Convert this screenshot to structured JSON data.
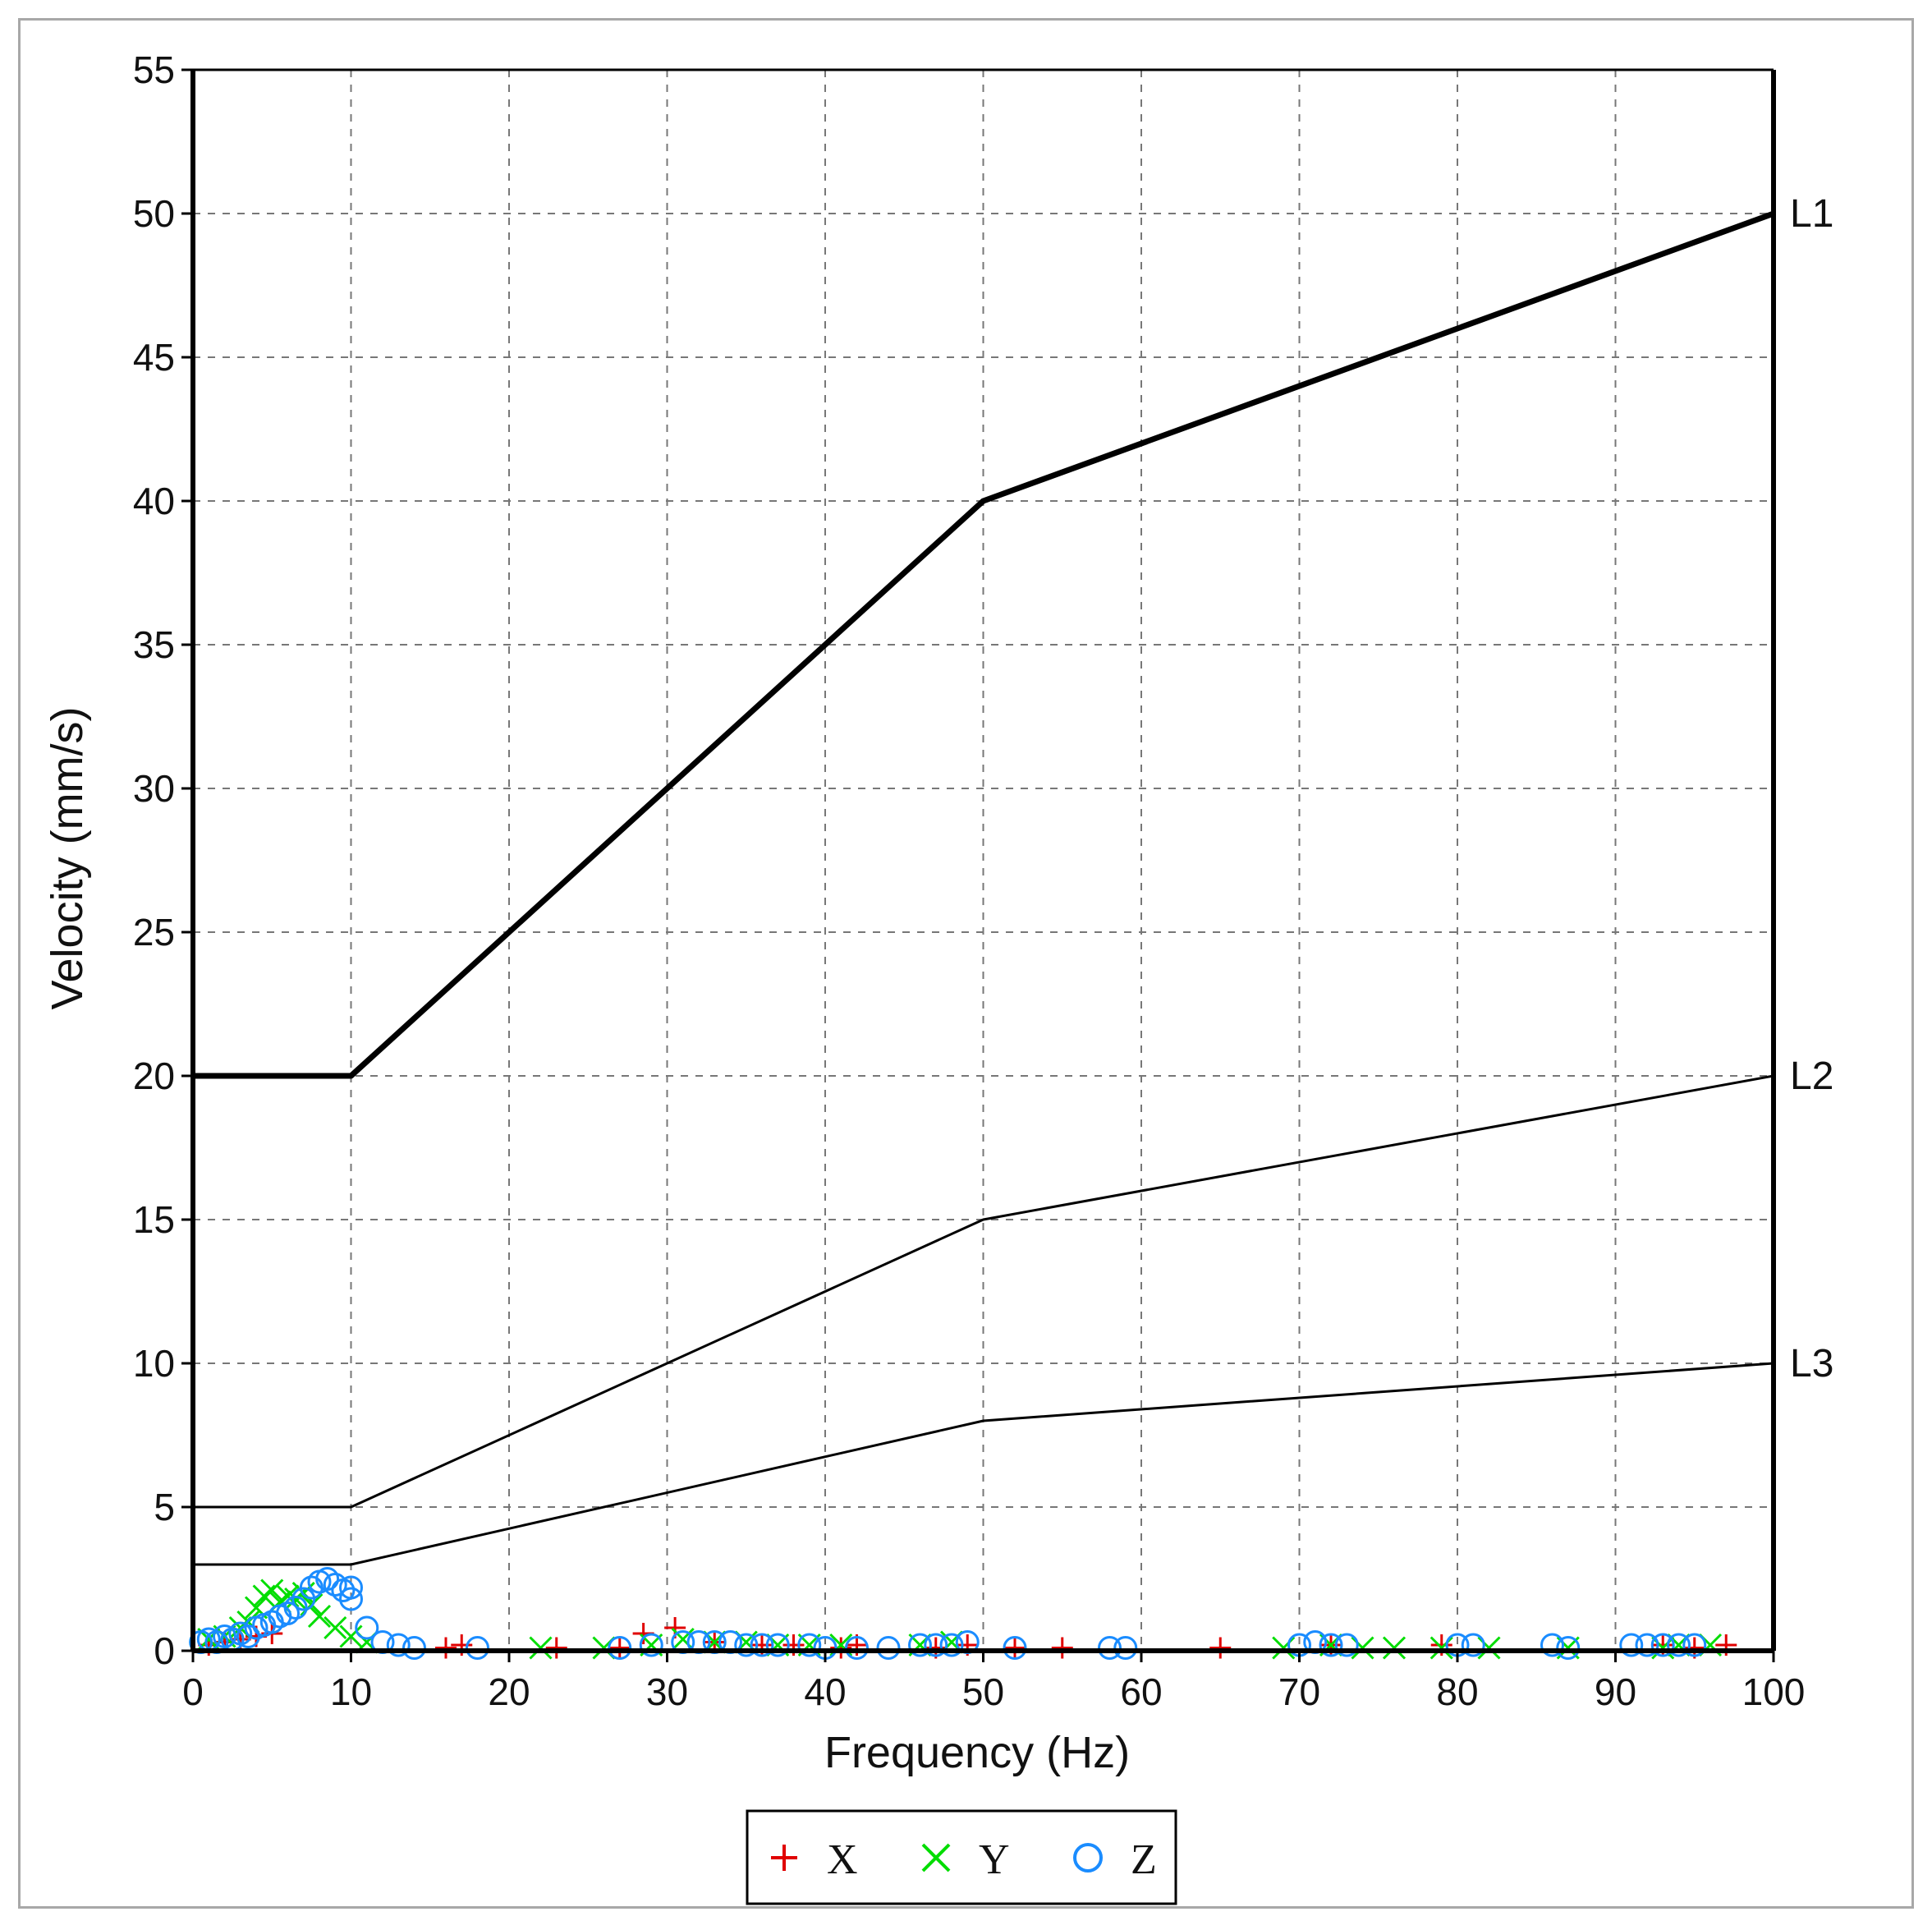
{
  "chart_data": {
    "type": "scatter",
    "xlabel": "Frequency (Hz)",
    "ylabel": "Velocity (mm/s)",
    "xlim": [
      0,
      100
    ],
    "ylim": [
      0,
      55
    ],
    "x_ticks": [
      0,
      10,
      20,
      30,
      40,
      50,
      60,
      70,
      80,
      90,
      100
    ],
    "y_ticks": [
      0,
      5,
      10,
      15,
      20,
      25,
      30,
      35,
      40,
      45,
      50,
      55
    ],
    "grid": true,
    "legend_position": "bottom-center",
    "limit_lines": [
      {
        "name": "L1",
        "points": [
          [
            0,
            20
          ],
          [
            10,
            20
          ],
          [
            50,
            40
          ],
          [
            100,
            50
          ]
        ],
        "style": "thick"
      },
      {
        "name": "L2",
        "points": [
          [
            0,
            5
          ],
          [
            10,
            5
          ],
          [
            50,
            15
          ],
          [
            100,
            20
          ]
        ],
        "style": "thin"
      },
      {
        "name": "L3",
        "points": [
          [
            0,
            3
          ],
          [
            10,
            3
          ],
          [
            50,
            8
          ],
          [
            100,
            10
          ]
        ],
        "style": "thin"
      }
    ],
    "series": [
      {
        "name": "X",
        "marker": "plus",
        "color": "#e00000",
        "points": [
          [
            1,
            0.2
          ],
          [
            2,
            0.3
          ],
          [
            3,
            0.4
          ],
          [
            4,
            0.5
          ],
          [
            5,
            0.6
          ],
          [
            16,
            0.1
          ],
          [
            17,
            0.2
          ],
          [
            23,
            0.1
          ],
          [
            27,
            0.1
          ],
          [
            28.5,
            0.6
          ],
          [
            30.5,
            0.8
          ],
          [
            33,
            0.3
          ],
          [
            36,
            0.2
          ],
          [
            38,
            0.2
          ],
          [
            41,
            0.1
          ],
          [
            42,
            0.2
          ],
          [
            47,
            0.1
          ],
          [
            49,
            0.2
          ],
          [
            52,
            0.1
          ],
          [
            55,
            0.1
          ],
          [
            65,
            0.1
          ],
          [
            72,
            0.2
          ],
          [
            79,
            0.2
          ],
          [
            93,
            0.2
          ],
          [
            95,
            0.1
          ],
          [
            97,
            0.2
          ]
        ]
      },
      {
        "name": "Y",
        "marker": "cross",
        "color": "#00dd00",
        "points": [
          [
            1,
            0.4
          ],
          [
            2,
            0.5
          ],
          [
            3,
            0.8
          ],
          [
            3.5,
            1.0
          ],
          [
            4,
            1.5
          ],
          [
            4.5,
            1.9
          ],
          [
            5,
            2.1
          ],
          [
            5.5,
            1.7
          ],
          [
            6,
            1.9
          ],
          [
            6.5,
            1.8
          ],
          [
            7,
            2.0
          ],
          [
            7.5,
            1.6
          ],
          [
            8,
            1.2
          ],
          [
            9,
            0.8
          ],
          [
            10,
            0.5
          ],
          [
            11,
            0.3
          ],
          [
            22,
            0.1
          ],
          [
            26,
            0.1
          ],
          [
            29,
            0.2
          ],
          [
            31,
            0.4
          ],
          [
            33,
            0.3
          ],
          [
            35,
            0.3
          ],
          [
            37,
            0.2
          ],
          [
            39,
            0.2
          ],
          [
            41,
            0.2
          ],
          [
            46,
            0.2
          ],
          [
            48,
            0.3
          ],
          [
            69,
            0.1
          ],
          [
            72,
            0.2
          ],
          [
            74,
            0.1
          ],
          [
            76,
            0.1
          ],
          [
            79,
            0.1
          ],
          [
            82,
            0.1
          ],
          [
            87,
            0.1
          ],
          [
            93,
            0.1
          ],
          [
            94,
            0.2
          ],
          [
            96,
            0.2
          ]
        ]
      },
      {
        "name": "Z",
        "marker": "circle",
        "color": "#1a8cff",
        "points": [
          [
            0.5,
            0.3
          ],
          [
            1,
            0.4
          ],
          [
            1.5,
            0.3
          ],
          [
            2,
            0.5
          ],
          [
            2.5,
            0.4
          ],
          [
            3,
            0.6
          ],
          [
            3.5,
            0.5
          ],
          [
            4,
            0.8
          ],
          [
            4.5,
            0.9
          ],
          [
            5,
            1.0
          ],
          [
            5.5,
            1.2
          ],
          [
            6,
            1.3
          ],
          [
            6.5,
            1.5
          ],
          [
            7,
            1.8
          ],
          [
            7.5,
            2.2
          ],
          [
            8,
            2.4
          ],
          [
            8.5,
            2.5
          ],
          [
            9,
            2.3
          ],
          [
            9.5,
            2.1
          ],
          [
            10,
            1.8
          ],
          [
            10,
            2.2
          ],
          [
            11,
            0.8
          ],
          [
            12,
            0.3
          ],
          [
            13,
            0.2
          ],
          [
            14,
            0.1
          ],
          [
            18,
            0.1
          ],
          [
            27,
            0.1
          ],
          [
            29,
            0.2
          ],
          [
            31,
            0.3
          ],
          [
            32,
            0.3
          ],
          [
            33,
            0.3
          ],
          [
            34,
            0.3
          ],
          [
            35,
            0.2
          ],
          [
            36,
            0.2
          ],
          [
            37,
            0.2
          ],
          [
            39,
            0.2
          ],
          [
            40,
            0.1
          ],
          [
            42,
            0.1
          ],
          [
            44,
            0.1
          ],
          [
            46,
            0.2
          ],
          [
            47,
            0.2
          ],
          [
            48,
            0.2
          ],
          [
            49,
            0.3
          ],
          [
            52,
            0.1
          ],
          [
            58,
            0.1
          ],
          [
            59,
            0.1
          ],
          [
            70,
            0.2
          ],
          [
            71,
            0.3
          ],
          [
            72,
            0.2
          ],
          [
            73,
            0.2
          ],
          [
            80,
            0.2
          ],
          [
            81,
            0.2
          ],
          [
            86,
            0.2
          ],
          [
            87,
            0.1
          ],
          [
            91,
            0.2
          ],
          [
            92,
            0.2
          ],
          [
            93,
            0.2
          ],
          [
            94,
            0.2
          ],
          [
            95,
            0.2
          ]
        ]
      }
    ]
  },
  "legend": {
    "items": [
      {
        "label": "X",
        "marker": "plus",
        "color": "#e00000"
      },
      {
        "label": "Y",
        "marker": "cross",
        "color": "#00dd00"
      },
      {
        "label": "Z",
        "marker": "circle",
        "color": "#1a8cff"
      }
    ]
  }
}
